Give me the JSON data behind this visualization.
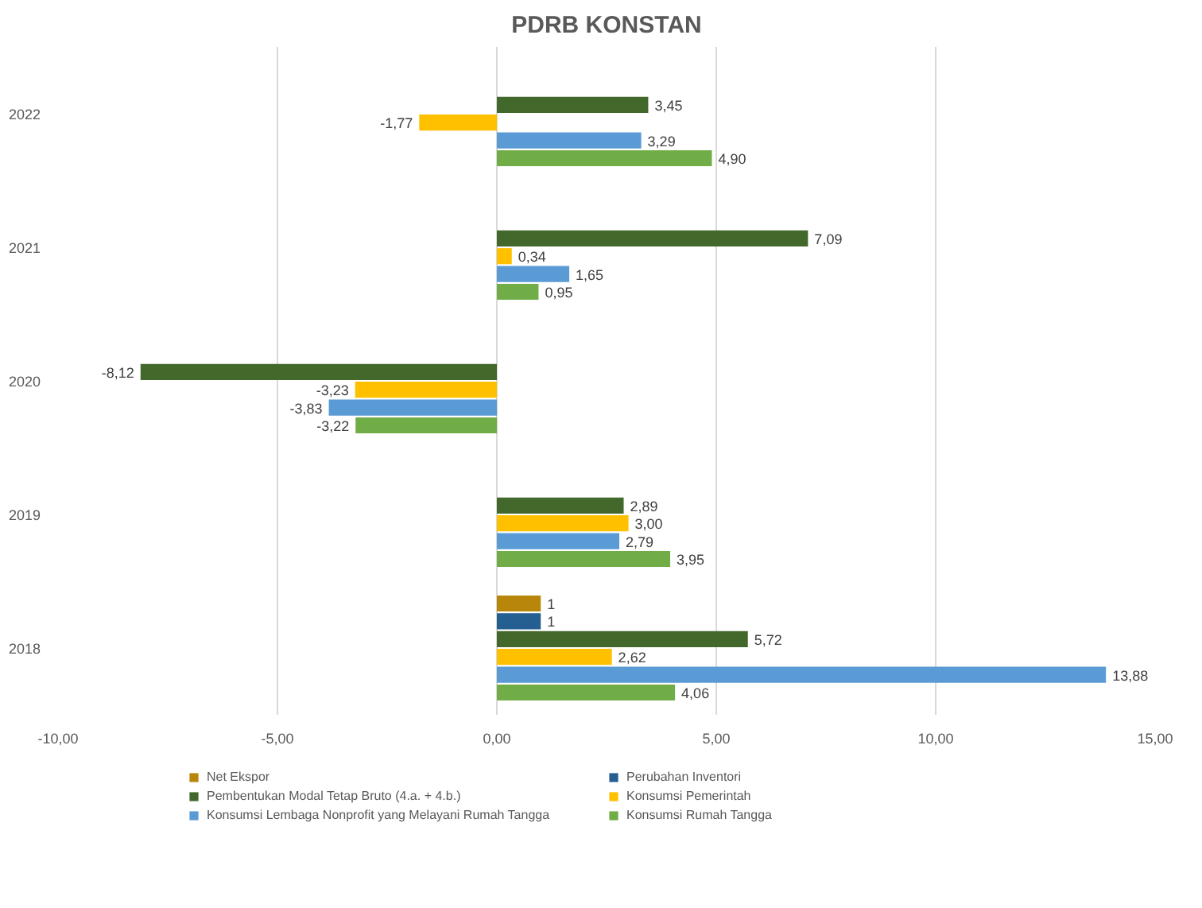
{
  "chart_data": {
    "type": "bar",
    "orientation": "horizontal",
    "title": "PDRB KONSTAN",
    "categories": [
      "2022",
      "2021",
      "2020",
      "2019",
      "2018"
    ],
    "series": [
      {
        "name": "Net Ekspor",
        "color": "#b8860b",
        "values": [
          null,
          null,
          null,
          null,
          1
        ],
        "value_labels": [
          null,
          null,
          null,
          null,
          "1"
        ]
      },
      {
        "name": "Perubahan Inventori",
        "color": "#255e91",
        "values": [
          null,
          null,
          null,
          null,
          1
        ],
        "value_labels": [
          null,
          null,
          null,
          null,
          "1"
        ]
      },
      {
        "name": "Pembentukan Modal Tetap Bruto (4.a. + 4.b.)",
        "color": "#43682b",
        "values": [
          3.45,
          7.09,
          -8.12,
          2.89,
          5.72
        ],
        "value_labels": [
          "3,45",
          "7,09",
          "-8,12",
          "2,89",
          "5,72"
        ]
      },
      {
        "name": "Konsumsi Pemerintah",
        "color": "#ffc000",
        "values": [
          -1.77,
          0.34,
          -3.23,
          3.0,
          2.62
        ],
        "value_labels": [
          "-1,77",
          "0,34",
          "-3,23",
          "3,00",
          "2,62"
        ]
      },
      {
        "name": "Konsumsi Lembaga Nonprofit yang Melayani Rumah Tangga",
        "color": "#5b9bd5",
        "values": [
          3.29,
          1.65,
          -3.83,
          2.79,
          13.88
        ],
        "value_labels": [
          "3,29",
          "1,65",
          "-3,83",
          "2,79",
          "13,88"
        ]
      },
      {
        "name": "Konsumsi Rumah Tangga",
        "color": "#70ad47",
        "values": [
          4.9,
          0.95,
          -3.22,
          3.95,
          4.06
        ],
        "value_labels": [
          "4,90",
          "0,95",
          "-3,22",
          "3,95",
          "4,06"
        ]
      }
    ],
    "xlim": [
      -10,
      15
    ],
    "xticks": [
      {
        "value": -10,
        "label": "-10,00"
      },
      {
        "value": -5,
        "label": "-5,00"
      },
      {
        "value": 0,
        "label": "0,00"
      },
      {
        "value": 5,
        "label": "5,00"
      },
      {
        "value": 10,
        "label": "10,00"
      },
      {
        "value": 15,
        "label": "15,00"
      }
    ],
    "grid": "x",
    "legend": "bottom"
  }
}
